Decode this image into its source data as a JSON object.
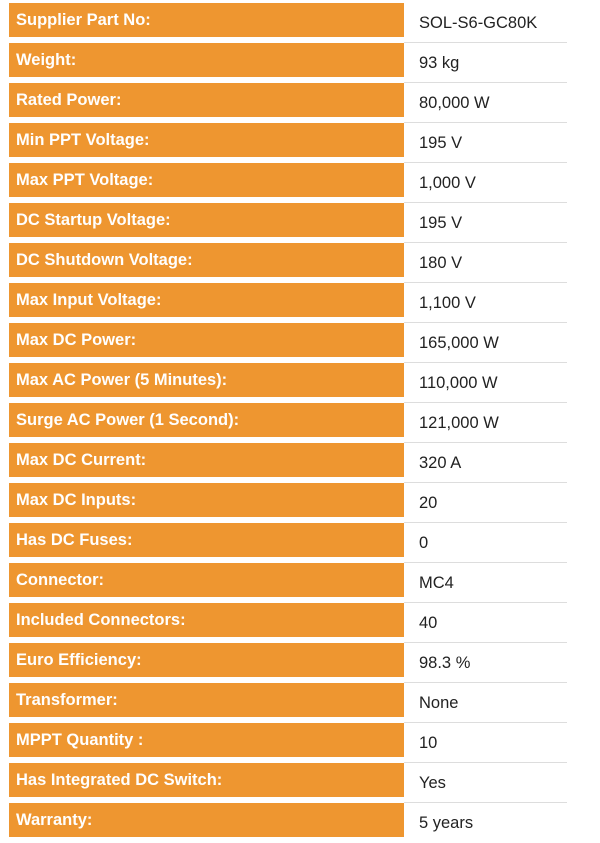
{
  "specs": [
    {
      "label": "Supplier Part No:",
      "value": "SOL-S6-GC80K"
    },
    {
      "label": "Weight:",
      "value": "93 kg"
    },
    {
      "label": "Rated Power:",
      "value": "80,000 W"
    },
    {
      "label": "Min PPT Voltage:",
      "value": "195 V"
    },
    {
      "label": "Max PPT Voltage:",
      "value": "1,000 V"
    },
    {
      "label": "DC Startup Voltage:",
      "value": "195 V"
    },
    {
      "label": "DC Shutdown Voltage:",
      "value": "180 V"
    },
    {
      "label": "Max Input Voltage:",
      "value": "1,100 V"
    },
    {
      "label": "Max DC Power:",
      "value": "165,000 W"
    },
    {
      "label": "Max AC Power (5 Minutes):",
      "value": "110,000 W"
    },
    {
      "label": "Surge AC Power (1 Second):",
      "value": "121,000 W"
    },
    {
      "label": "Max DC Current:",
      "value": "320 A"
    },
    {
      "label": "Max DC Inputs:",
      "value": "20"
    },
    {
      "label": "Has DC Fuses:",
      "value": "0"
    },
    {
      "label": "Connector:",
      "value": "MC4"
    },
    {
      "label": "Included Connectors:",
      "value": "40"
    },
    {
      "label": "Euro Efficiency:",
      "value": "98.3 %"
    },
    {
      "label": "Transformer:",
      "value": "None"
    },
    {
      "label": "MPPT Quantity :",
      "value": "10"
    },
    {
      "label": "Has Integrated DC Switch:",
      "value": "Yes"
    },
    {
      "label": "Warranty:",
      "value": "5 years"
    }
  ],
  "colors": {
    "label_bg": "#ee9630",
    "label_text": "#ffffff",
    "value_text": "#222222"
  }
}
